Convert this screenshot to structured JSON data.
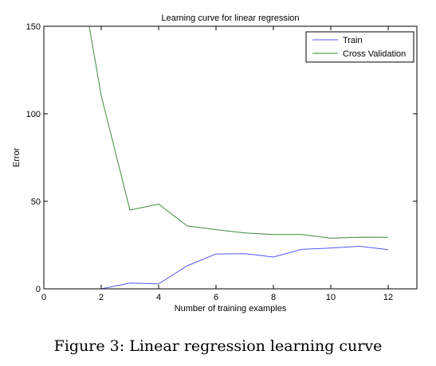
{
  "caption": "Figure 3: Linear regression learning curve",
  "chart_data": {
    "type": "line",
    "title": "Learning curve for linear regression",
    "xlabel": "Number of training examples",
    "ylabel": "Error",
    "xlim": [
      0,
      13
    ],
    "ylim": [
      0,
      150
    ],
    "xticks": [
      0,
      2,
      4,
      6,
      8,
      10,
      12
    ],
    "yticks": [
      0,
      50,
      100,
      150
    ],
    "grid": false,
    "legend_position": "top-right",
    "series": [
      {
        "name": "Train",
        "color": "#5555ee",
        "x": [
          1,
          2,
          3,
          4,
          5,
          6,
          7,
          8,
          9,
          10,
          11,
          12
        ],
        "y": [
          0,
          0,
          3.3,
          2.8,
          13.2,
          19.9,
          20.1,
          18.2,
          22.6,
          23.3,
          24.3,
          22.4
        ]
      },
      {
        "name": "Cross Validation",
        "color": "#3b8a3b",
        "x": [
          1,
          2,
          3,
          4,
          5,
          6,
          7,
          8,
          9,
          10,
          11,
          12
        ],
        "y": [
          205.1,
          110.3,
          45.0,
          48.4,
          35.9,
          33.8,
          31.9,
          31.0,
          31.0,
          28.9,
          29.5,
          29.4
        ]
      }
    ]
  }
}
